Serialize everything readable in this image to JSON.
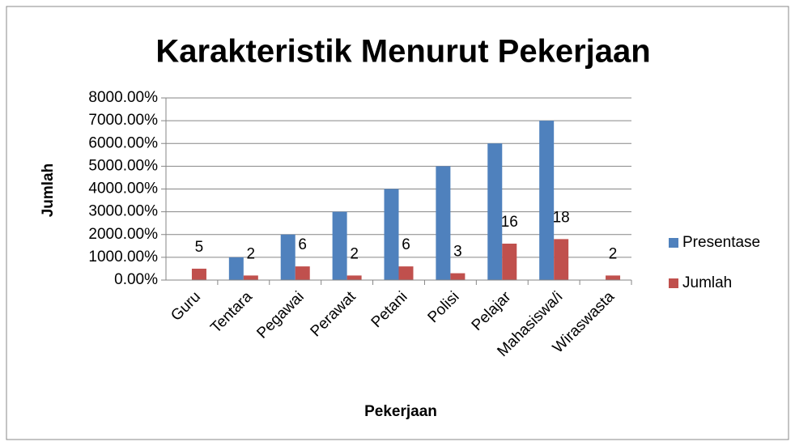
{
  "chart_data": {
    "type": "bar",
    "title": "Karakteristik  Menurut Pekerjaan",
    "x_label": "Pekerjaan",
    "y_label": "Jumlah",
    "categories": [
      "Guru",
      "Tentara",
      "Pegawai",
      "Perawat",
      "Petani",
      "Polisi",
      "Pelajar",
      "Mahasiswa/i",
      "Wiraswasta"
    ],
    "series": [
      {
        "name": "Presentase",
        "color": "#4f81bd",
        "values": [
          0,
          10,
          20,
          30,
          40,
          50,
          60,
          70,
          0
        ]
      },
      {
        "name": "Jumlah",
        "color": "#c0504d",
        "values": [
          5,
          2,
          6,
          2,
          6,
          3,
          16,
          18,
          2
        ],
        "data_labels": true
      }
    ],
    "ylim": [
      0,
      80
    ],
    "yticks": [
      {
        "value": 0,
        "label": "0.00%"
      },
      {
        "value": 10,
        "label": "1000.00%"
      },
      {
        "value": 20,
        "label": "2000.00%"
      },
      {
        "value": 30,
        "label": "3000.00%"
      },
      {
        "value": 40,
        "label": "4000.00%"
      },
      {
        "value": 50,
        "label": "5000.00%"
      },
      {
        "value": 60,
        "label": "6000.00%"
      },
      {
        "value": 70,
        "label": "7000.00%"
      },
      {
        "value": 80,
        "label": "8000.00%"
      }
    ],
    "grid": true,
    "legend": "right"
  }
}
